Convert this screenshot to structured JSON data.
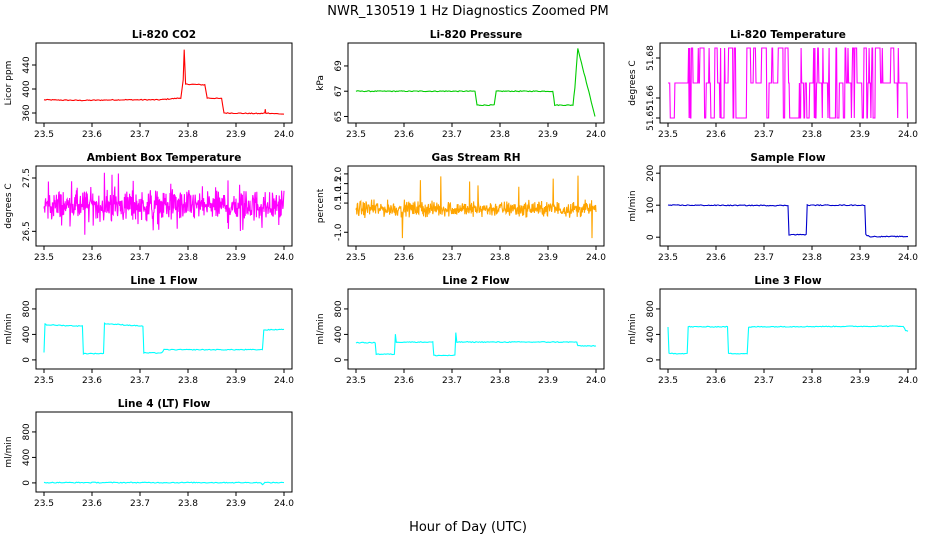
{
  "figure": {
    "title": "NWR_130519  1 Hz Diagnostics Zoomed PM",
    "xlabel": "Hour of Day (UTC)"
  },
  "chart_data": [
    {
      "type": "line",
      "title": "Li-820 CO2",
      "ylabel": "Licor ppm",
      "color": "#ff0000",
      "xlim": [
        23.5,
        24.0
      ],
      "ylim": [
        350,
        470
      ],
      "yticks": [
        360,
        400,
        440
      ],
      "xticks": [
        23.5,
        23.6,
        23.7,
        23.8,
        23.9,
        24.0
      ],
      "series": [
        {
          "x": [
            23.5,
            23.58,
            23.66,
            23.74,
            23.785,
            23.79,
            23.792,
            23.795,
            23.8,
            23.835,
            23.84,
            23.87,
            23.875,
            23.95,
            23.96,
            23.961,
            23.962,
            24.0
          ],
          "y": [
            382,
            381,
            382,
            382,
            385,
            415,
            465,
            408,
            408,
            407,
            385,
            384,
            360,
            359,
            360,
            366,
            360,
            358
          ]
        }
      ]
    },
    {
      "type": "line",
      "title": "Li-820 Pressure",
      "ylabel": "kPa",
      "color": "#00cc00",
      "xlim": [
        23.5,
        24.0
      ],
      "ylim": [
        64.8,
        70.5
      ],
      "yticks": [
        65,
        67,
        69
      ],
      "xticks": [
        23.5,
        23.6,
        23.7,
        23.8,
        23.9,
        24.0
      ],
      "series": [
        {
          "x": [
            23.5,
            23.6,
            23.7,
            23.748,
            23.752,
            23.788,
            23.792,
            23.91,
            23.914,
            23.952,
            23.956,
            23.962,
            23.998
          ],
          "y": [
            67.0,
            67.0,
            67.0,
            67.0,
            65.9,
            65.9,
            67.0,
            67.0,
            65.9,
            65.9,
            67.3,
            70.4,
            65.0
          ]
        }
      ]
    },
    {
      "type": "line",
      "title": "Li-820 Temperature",
      "ylabel": "degrees C",
      "color": "#ff00ff",
      "xlim": [
        23.5,
        24.0
      ],
      "ylim": [
        51.6495,
        51.6855
      ],
      "yticks": [
        51.65,
        51.66,
        51.68
      ],
      "ytick_labels": [
        "51.65",
        "51.66",
        "51.68"
      ],
      "xticks": [
        23.5,
        23.6,
        23.7,
        23.8,
        23.9,
        24.0
      ],
      "series": [
        {
          "levels": [
            51.65,
            51.6675,
            51.685
          ],
          "pattern": "switching"
        }
      ]
    },
    {
      "type": "line",
      "title": "Ambient Box Temperature",
      "ylabel": "degrees C",
      "color": "#ff00ff",
      "xlim": [
        23.5,
        24.0
      ],
      "ylim": [
        26.3,
        27.65
      ],
      "yticks": [
        26.5,
        27.5
      ],
      "xticks": [
        23.5,
        23.6,
        23.7,
        23.8,
        23.9,
        24.0
      ],
      "series": [
        {
          "mean": 26.98,
          "spread": 0.22,
          "min": 26.35,
          "max": 27.6,
          "pattern": "noise"
        }
      ]
    },
    {
      "type": "line",
      "title": "Gas Stream RH",
      "ylabel": "percent",
      "color": "#ffa500",
      "xlim": [
        23.5,
        24.0
      ],
      "ylim": [
        -1.5,
        2.2
      ],
      "yticks": [
        -1.0,
        0.5,
        1.0,
        1.5,
        2.0
      ],
      "ytick_labels": [
        "-1.0",
        "0.5",
        "1.0",
        "1.5",
        "2.0"
      ],
      "xticks": [
        23.5,
        23.6,
        23.7,
        23.8,
        23.9,
        24.0
      ],
      "series": [
        {
          "mean": 0.2,
          "spread": 0.3,
          "min": -1.3,
          "max": 2.0,
          "pattern": "noise"
        }
      ]
    },
    {
      "type": "line",
      "title": "Sample Flow",
      "ylabel": "ml/min",
      "color": "#0000cc",
      "xlim": [
        23.5,
        24.0
      ],
      "ylim": [
        -15,
        210
      ],
      "yticks": [
        0,
        100,
        200
      ],
      "xticks": [
        23.5,
        23.6,
        23.7,
        23.8,
        23.9,
        24.0
      ],
      "series": [
        {
          "x": [
            23.5,
            23.75,
            23.752,
            23.788,
            23.79,
            23.91,
            23.912,
            23.92,
            24.0
          ],
          "y": [
            100,
            99,
            8,
            8,
            100,
            100,
            8,
            2,
            2
          ]
        }
      ]
    },
    {
      "type": "line",
      "title": "Line 1 Flow",
      "ylabel": "ml/min",
      "color": "#00ffff",
      "xlim": [
        23.5,
        24.0
      ],
      "ylim": [
        -80,
        1050
      ],
      "yticks": [
        0,
        400,
        800
      ],
      "xticks": [
        23.5,
        23.6,
        23.7,
        23.8,
        23.9,
        24.0
      ],
      "series": [
        {
          "x": [
            23.5,
            23.502,
            23.505,
            23.58,
            23.582,
            23.624,
            23.626,
            23.706,
            23.708,
            23.745,
            23.75,
            23.955,
            23.958,
            24.0
          ],
          "y": [
            120,
            570,
            550,
            530,
            100,
            100,
            570,
            530,
            110,
            110,
            160,
            160,
            470,
            480
          ]
        }
      ]
    },
    {
      "type": "line",
      "title": "Line 2 Flow",
      "ylabel": "ml/min",
      "color": "#00ffff",
      "xlim": [
        23.5,
        24.0
      ],
      "ylim": [
        -80,
        1050
      ],
      "yticks": [
        0,
        400,
        800
      ],
      "xticks": [
        23.5,
        23.6,
        23.7,
        23.8,
        23.9,
        24.0
      ],
      "series": [
        {
          "x": [
            23.5,
            23.54,
            23.542,
            23.58,
            23.582,
            23.584,
            23.66,
            23.662,
            23.706,
            23.708,
            23.71,
            23.96,
            23.962,
            24.0
          ],
          "y": [
            270,
            270,
            90,
            90,
            400,
            280,
            280,
            70,
            70,
            430,
            280,
            280,
            220,
            220
          ]
        }
      ]
    },
    {
      "type": "line",
      "title": "Line 3 Flow",
      "ylabel": "ml/min",
      "color": "#00ffff",
      "xlim": [
        23.5,
        24.0
      ],
      "ylim": [
        -80,
        1050
      ],
      "yticks": [
        0,
        400,
        800
      ],
      "xticks": [
        23.5,
        23.6,
        23.7,
        23.8,
        23.9,
        24.0
      ],
      "series": [
        {
          "x": [
            23.5,
            23.502,
            23.54,
            23.542,
            23.624,
            23.626,
            23.665,
            23.668,
            23.68,
            23.99,
            23.995,
            24.0
          ],
          "y": [
            510,
            100,
            100,
            520,
            520,
            100,
            100,
            510,
            520,
            530,
            460,
            450
          ]
        }
      ]
    },
    {
      "type": "line",
      "title": "Line 4 (LT) Flow",
      "ylabel": "ml/min",
      "color": "#00ffff",
      "xlim": [
        23.5,
        24.0
      ],
      "ylim": [
        -80,
        1050
      ],
      "yticks": [
        0,
        400,
        800
      ],
      "xticks": [
        23.5,
        23.6,
        23.7,
        23.8,
        23.9,
        24.0
      ],
      "series": [
        {
          "x": [
            23.5,
            23.95,
            23.955,
            23.96,
            24.0
          ],
          "y": [
            5,
            5,
            -20,
            5,
            5
          ]
        }
      ]
    }
  ]
}
